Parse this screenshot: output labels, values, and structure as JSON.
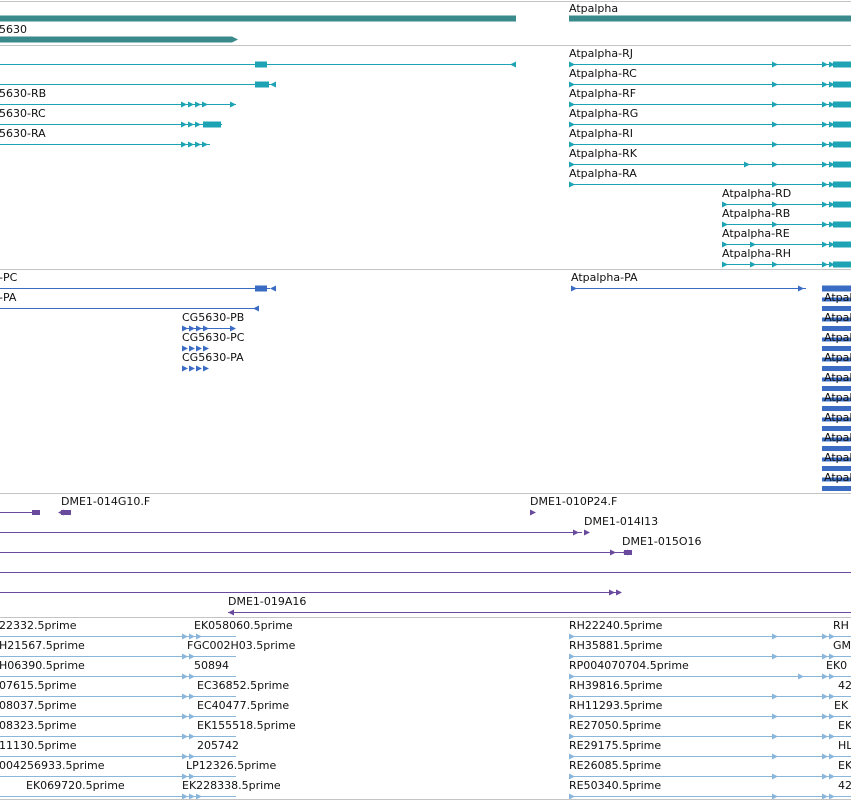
{
  "colors": {
    "gene": "#3a8a8c",
    "mrna": "#1ea3b5",
    "protein": "#3a6cc4",
    "clone": "#6a4a9c",
    "est": "#8ab6dc",
    "separator": "#c4c4c4"
  },
  "tracks": {
    "genes": {
      "labels": [
        "5630",
        "Atpalpha"
      ]
    },
    "transcripts": {
      "labels": [
        "5630-RB",
        "5630-RC",
        "5630-RA",
        "Atpalpha-RJ",
        "Atpalpha-RC",
        "Atpalpha-RF",
        "Atpalpha-RG",
        "Atpalpha-RI",
        "Atpalpha-RK",
        "Atpalpha-RA",
        "Atpalpha-RD",
        "Atpalpha-RB",
        "Atpalpha-RE",
        "Atpalpha-RH"
      ]
    },
    "proteins": {
      "labels": [
        "-PC",
        "-PA",
        "CG5630-PB",
        "CG5630-PC",
        "CG5630-PA",
        "Atpalpha-PA",
        "Atpal",
        "Atpal",
        "Atpal",
        "Atpal",
        "Atpal",
        "Atpal",
        "Atpal",
        "Atpal",
        "Atpal",
        "Atpal"
      ]
    },
    "clones": {
      "labels": [
        "DME1-014G10.F",
        "DME1-010P24.F",
        "DME1-014I13",
        "DME1-015O16",
        "DME1-019A16"
      ]
    },
    "ests": {
      "labels": [
        "22332.5prime",
        "EK058060.5prime",
        "RH22240.5prime",
        "RH",
        "H21567.5prime",
        "FGC002H03.5prime",
        "RH35881.5prime",
        "GM",
        "H06390.5prime",
        "50894",
        "RP004070704.5prime",
        "EK0",
        "07615.5prime",
        "EC36852.5prime",
        "RH39816.5prime",
        "42",
        "08037.5prime",
        "EC40477.5prime",
        "RH11293.5prime",
        "EK",
        "08323.5prime",
        "EK155518.5prime",
        "RE27050.5prime",
        "EK",
        "11130.5prime",
        "205742",
        "RE29175.5prime",
        "HL",
        "004256933.5prime",
        "LP12326.5prime",
        "RE26085.5prime",
        "EK",
        "EK069720.5prime",
        "EK228338.5prime",
        "RE50340.5prime",
        "42"
      ]
    }
  }
}
